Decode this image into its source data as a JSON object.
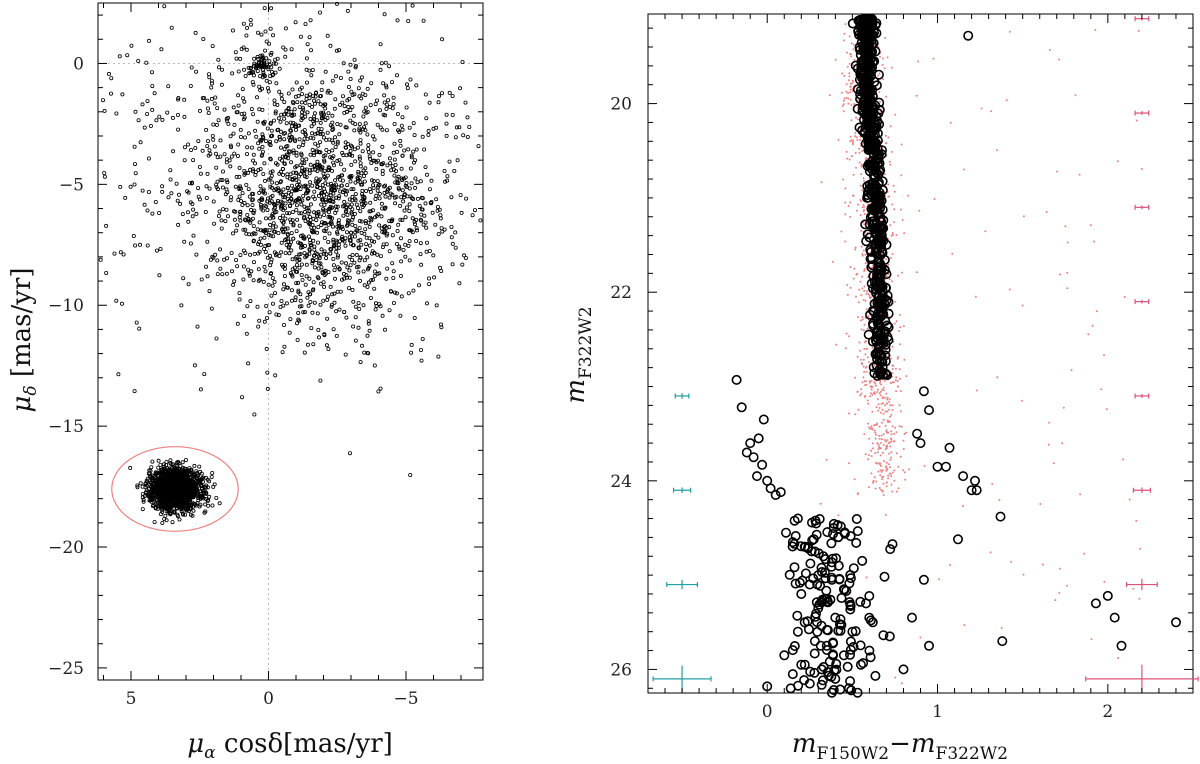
{
  "chart_data": [
    {
      "type": "scatter",
      "xlabel": "μα cosδ[mas/yr]",
      "ylabel": "μδ [mas/yr]",
      "xlim": [
        6.2,
        -7.8
      ],
      "ylim": [
        -25.5,
        2.5
      ],
      "xticks": [
        5,
        0,
        -5
      ],
      "xtick_labels": [
        "5",
        "0",
        "−5"
      ],
      "yticks": [
        0,
        -5,
        -10,
        -15,
        -20,
        -25
      ],
      "ytick_labels": [
        "0",
        "−5",
        "−10",
        "−15",
        "−20",
        "−25"
      ],
      "reference_lines": {
        "x": 0,
        "y": 0
      },
      "selection_circle": {
        "center": [
          3.4,
          -17.6
        ],
        "radius_x": 2.3,
        "radius_y": 1.75,
        "color": "#f08080"
      },
      "series": [
        {
          "center": [
            -1.9,
            -5.7
          ],
          "spread": [
            2.1,
            2.7
          ],
          "count": 1500
        },
        {
          "center": [
            0.2,
            -3.5
          ],
          "spread": [
            3.6,
            3.8
          ],
          "count": 500
        },
        {
          "center": [
            0.3,
            -0.1
          ],
          "spread": [
            0.3,
            0.25
          ],
          "count": 70
        },
        {
          "center": [
            3.4,
            -17.6
          ],
          "spread": [
            0.45,
            0.4
          ],
          "count": 1800
        }
      ]
    },
    {
      "type": "scatter",
      "xlabel": "mF150W2−mF322W2",
      "ylabel": "mF322W2",
      "xlim": [
        -0.7,
        2.5
      ],
      "ylim": [
        26.25,
        19.05
      ],
      "xticks": [
        0,
        1,
        2
      ],
      "xtick_labels": [
        "0",
        "1",
        "2"
      ],
      "yticks": [
        20,
        22,
        24,
        26
      ],
      "ytick_labels": [
        "20",
        "22",
        "24",
        "26"
      ],
      "field_color": "#f08080",
      "points": [
        [
          -0.18,
          22.93
        ],
        [
          -0.15,
          23.22
        ],
        [
          -0.02,
          23.35
        ],
        [
          -0.05,
          23.55
        ],
        [
          -0.1,
          23.6
        ],
        [
          -0.12,
          23.7
        ],
        [
          -0.08,
          23.75
        ],
        [
          -0.03,
          23.83
        ],
        [
          -0.06,
          23.95
        ],
        [
          0.0,
          24.0
        ],
        [
          0.02,
          24.08
        ],
        [
          0.05,
          24.15
        ],
        [
          0.08,
          24.12
        ],
        [
          0.11,
          24.55
        ],
        [
          0.18,
          24.4
        ],
        [
          0.15,
          24.65
        ],
        [
          0.22,
          24.7
        ],
        [
          0.28,
          24.75
        ],
        [
          0.33,
          24.8
        ],
        [
          0.42,
          24.9
        ],
        [
          0.3,
          25.0
        ],
        [
          0.38,
          25.05
        ],
        [
          0.25,
          25.1
        ],
        [
          0.2,
          25.2
        ],
        [
          0.45,
          25.15
        ],
        [
          0.35,
          25.25
        ],
        [
          0.3,
          25.35
        ],
        [
          0.4,
          25.45
        ],
        [
          0.22,
          25.5
        ],
        [
          0.18,
          25.6
        ],
        [
          0.5,
          25.6
        ],
        [
          0.28,
          25.7
        ],
        [
          0.35,
          25.75
        ],
        [
          0.1,
          25.85
        ],
        [
          0.45,
          25.85
        ],
        [
          0.2,
          25.95
        ],
        [
          0.55,
          25.95
        ],
        [
          0.32,
          26.0
        ],
        [
          0.15,
          26.05
        ],
        [
          0.4,
          26.1
        ],
        [
          0.25,
          26.15
        ],
        [
          0.48,
          26.2
        ],
        [
          0.0,
          26.18
        ],
        [
          0.58,
          25.3
        ],
        [
          0.62,
          25.5
        ],
        [
          0.6,
          25.8
        ],
        [
          0.72,
          25.65
        ],
        [
          0.85,
          25.45
        ],
        [
          0.8,
          26.0
        ],
        [
          0.92,
          23.05
        ],
        [
          0.95,
          23.25
        ],
        [
          0.88,
          23.5
        ],
        [
          0.9,
          23.6
        ],
        [
          1.07,
          23.65
        ],
        [
          1.0,
          23.85
        ],
        [
          1.05,
          23.85
        ],
        [
          1.15,
          23.95
        ],
        [
          1.22,
          24.0
        ],
        [
          1.2,
          24.1
        ],
        [
          1.23,
          24.1
        ],
        [
          1.37,
          24.38
        ],
        [
          1.12,
          24.62
        ],
        [
          0.92,
          25.05
        ],
        [
          1.38,
          25.7
        ],
        [
          0.95,
          25.75
        ],
        [
          1.18,
          19.28
        ],
        [
          1.93,
          25.3
        ],
        [
          2.0,
          25.22
        ],
        [
          2.04,
          25.45
        ],
        [
          2.08,
          25.75
        ],
        [
          2.4,
          25.5
        ]
      ],
      "sequence_samples": 600,
      "error_bars": [
        {
          "side": "left",
          "x": -0.5,
          "color": "#20a0a0",
          "items": [
            {
              "y": 23.1,
              "dx": 0.04,
              "dy": 0.03
            },
            {
              "y": 24.1,
              "dx": 0.05,
              "dy": 0.03
            },
            {
              "y": 25.1,
              "dx": 0.09,
              "dy": 0.05
            },
            {
              "y": 26.1,
              "dx": 0.17,
              "dy": 0.14
            }
          ]
        },
        {
          "side": "right",
          "x": 2.2,
          "color": "#e0507a",
          "items": [
            {
              "y": 19.1,
              "dx": 0.04,
              "dy": 0.02
            },
            {
              "y": 20.1,
              "dx": 0.04,
              "dy": 0.02
            },
            {
              "y": 21.1,
              "dx": 0.04,
              "dy": 0.02
            },
            {
              "y": 22.1,
              "dx": 0.04,
              "dy": 0.02
            },
            {
              "y": 23.1,
              "dx": 0.04,
              "dy": 0.02
            },
            {
              "y": 24.1,
              "dx": 0.05,
              "dy": 0.03
            },
            {
              "y": 25.1,
              "dx": 0.09,
              "dy": 0.06
            },
            {
              "y": 26.1,
              "dx": 0.33,
              "dy": 0.15
            }
          ]
        }
      ]
    }
  ]
}
